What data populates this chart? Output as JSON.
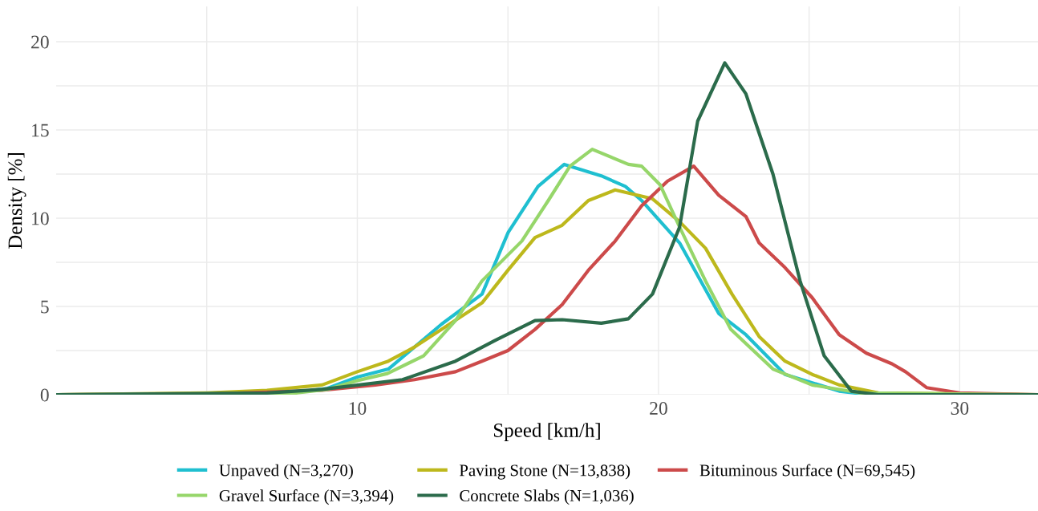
{
  "chart_data": {
    "type": "line",
    "xlabel": "Speed [km/h]",
    "ylabel": "Density [%]",
    "xlim": [
      0,
      32.6
    ],
    "ylim": [
      0,
      22
    ],
    "xticks": [
      {
        "value": 5,
        "label": null
      },
      10,
      {
        "value": 15,
        "label": null
      },
      20,
      {
        "value": 25,
        "label": null
      },
      30
    ],
    "yticks": [
      0,
      {
        "value": 2.5,
        "label": null
      },
      5,
      {
        "value": 7.5,
        "label": null
      },
      10,
      {
        "value": 12.5,
        "label": null
      },
      15,
      {
        "value": 17.5,
        "label": null
      },
      20
    ],
    "grid": true,
    "legend": "bottom",
    "line_style": "solid",
    "marker": "none",
    "series": [
      {
        "name": "Unpaved (N=3,270)",
        "color": "#1fbfd0",
        "x": [
          8,
          9,
          10,
          11.03,
          12.8,
          14.14,
          15.01,
          16.0,
          16.87,
          18.1,
          18.9,
          19.44,
          20.7,
          22.0,
          22.9,
          24.2,
          26.0,
          27.0,
          32.6
        ],
        "values": [
          0.15,
          0.35,
          1.0,
          1.45,
          4.0,
          5.7,
          9.2,
          11.8,
          13.05,
          12.4,
          11.8,
          11.0,
          8.6,
          4.6,
          3.4,
          1.15,
          0.2,
          0,
          0
        ]
      },
      {
        "name": "Paving Stone (N=13,838)",
        "color": "#bdb81c",
        "x": [
          0,
          5,
          7,
          8.83,
          10,
          11.03,
          11.9,
          12.8,
          14.14,
          15.0,
          15.9,
          16.8,
          17.67,
          18.56,
          19.8,
          20.7,
          21.56,
          22.44,
          23.34,
          24.2,
          25.1,
          26.0,
          27.3,
          32.6
        ],
        "values": [
          0,
          0.1,
          0.25,
          0.55,
          1.3,
          1.9,
          2.7,
          3.7,
          5.2,
          7.05,
          8.9,
          9.6,
          11.0,
          11.6,
          11.1,
          9.8,
          8.3,
          5.7,
          3.3,
          1.9,
          1.15,
          0.55,
          0.1,
          0
        ]
      },
      {
        "name": "Bituminous Surface (N=69,545)",
        "color": "#cc4a4a",
        "x": [
          0,
          5,
          8.83,
          10.6,
          11.9,
          13.26,
          14.14,
          15.0,
          15.9,
          16.8,
          17.67,
          18.56,
          19.44,
          20.3,
          21.17,
          22.0,
          22.9,
          23.34,
          24.2,
          25.1,
          26.0,
          26.9,
          27.75,
          28.2,
          28.9,
          30.0,
          32.6
        ],
        "values": [
          0,
          0.03,
          0.25,
          0.55,
          0.85,
          1.3,
          1.9,
          2.5,
          3.7,
          5.1,
          7.05,
          8.7,
          10.7,
          12.1,
          12.95,
          11.3,
          10.1,
          8.6,
          7.2,
          5.5,
          3.4,
          2.35,
          1.75,
          1.3,
          0.4,
          0.1,
          0
        ]
      },
      {
        "name": "Gravel Surface (N=3,394)",
        "color": "#96d66a",
        "x": [
          0,
          5,
          8,
          9,
          10,
          11,
          12.2,
          13.26,
          14.14,
          15.46,
          16.34,
          17.06,
          17.8,
          19.0,
          19.44,
          20.05,
          20.7,
          21.56,
          22.4,
          23.8,
          25.1,
          26.7,
          32.6
        ],
        "values": [
          0,
          0.05,
          0.1,
          0.3,
          0.8,
          1.2,
          2.2,
          4.2,
          6.45,
          8.7,
          11.0,
          12.95,
          13.9,
          13.05,
          12.95,
          11.9,
          9.5,
          6.45,
          3.7,
          1.45,
          0.55,
          0.1,
          0
        ]
      },
      {
        "name": "Concrete Slabs (N=1,036)",
        "color": "#2b6b4b",
        "x": [
          0,
          4,
          7,
          8.83,
          11.5,
          13.26,
          14.6,
          15.9,
          16.8,
          18.1,
          19.0,
          19.8,
          20.7,
          21.3,
          22.2,
          22.9,
          23.8,
          24.7,
          25.5,
          26.4,
          27.3,
          32.6
        ],
        "values": [
          0,
          0.05,
          0.1,
          0.3,
          0.85,
          1.9,
          3.1,
          4.2,
          4.25,
          4.05,
          4.3,
          5.7,
          9.5,
          15.5,
          18.8,
          17.05,
          12.5,
          6.45,
          2.2,
          0.2,
          0,
          0
        ]
      }
    ]
  }
}
